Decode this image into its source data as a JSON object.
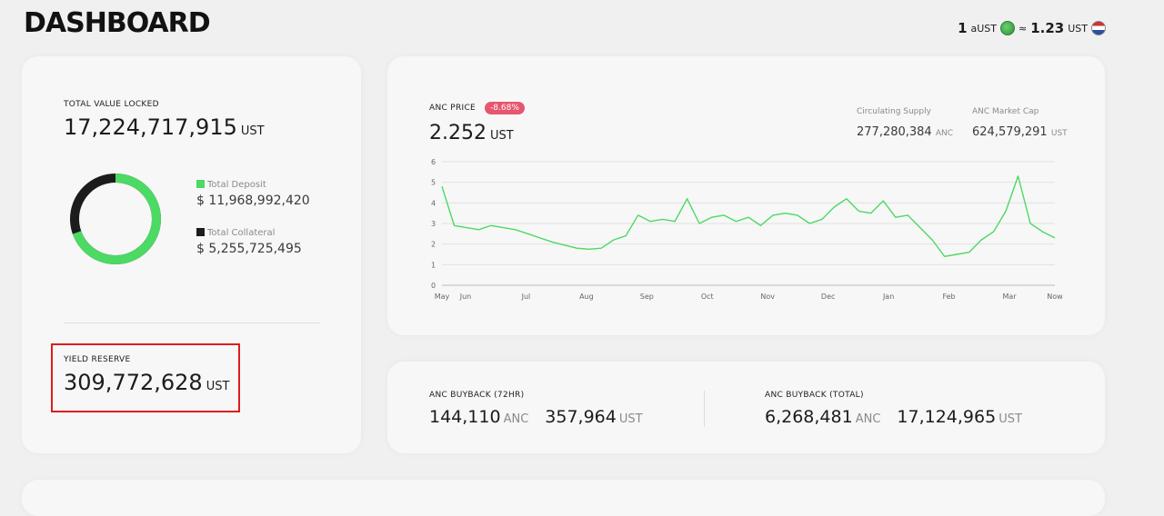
{
  "header": {
    "title": "DASHBOARD",
    "rate": {
      "lhs_qty": "1",
      "lhs_unit": "aUST",
      "approx": "≈",
      "rhs_qty": "1.23",
      "rhs_unit": "UST"
    }
  },
  "tvl": {
    "label": "TOTAL VALUE LOCKED",
    "value": "17,224,717,915",
    "unit": "UST",
    "legend": [
      {
        "label": "Total Deposit",
        "value": "$ 11,968,992,420",
        "color": "#4cd964"
      },
      {
        "label": "Total Collateral",
        "value": "$ 5,255,725,495",
        "color": "#1c1c1c"
      }
    ],
    "donut_fraction_deposit": 0.695
  },
  "yield_reserve": {
    "label": "YIELD RESERVE",
    "value": "309,772,628",
    "unit": "UST"
  },
  "anc_price": {
    "label": "ANC PRICE",
    "change_badge": "-8.68%",
    "value": "2.252",
    "unit": "UST",
    "circulating_supply": {
      "label": "Circulating Supply",
      "value": "277,280,384",
      "unit": "ANC"
    },
    "market_cap": {
      "label": "ANC Market Cap",
      "value": "624,579,291",
      "unit": "UST"
    }
  },
  "buyback": {
    "h72": {
      "label": "ANC BUYBACK (72HR)",
      "anc": "144,110",
      "anc_unit": "ANC",
      "ust": "357,964",
      "ust_unit": "UST"
    },
    "total": {
      "label": "ANC BUYBACK (TOTAL)",
      "anc": "6,268,481",
      "anc_unit": "ANC",
      "ust": "17,124,965",
      "ust_unit": "UST"
    }
  },
  "chart_data": {
    "type": "line",
    "title": "",
    "xlabel": "",
    "ylabel": "",
    "ylim": [
      0,
      6
    ],
    "yticks": [
      "0",
      "1",
      "2",
      "3",
      "4",
      "5",
      "6"
    ],
    "xticks": [
      "May",
      "Jun",
      "Jul",
      "Aug",
      "Sep",
      "Oct",
      "Nov",
      "Dec",
      "Jan",
      "Feb",
      "Mar",
      "Now"
    ],
    "grid": true,
    "line_color": "#4cd964",
    "x": [
      0,
      0.02,
      0.04,
      0.06,
      0.08,
      0.1,
      0.12,
      0.14,
      0.16,
      0.18,
      0.2,
      0.22,
      0.24,
      0.26,
      0.28,
      0.3,
      0.32,
      0.34,
      0.36,
      0.38,
      0.4,
      0.42,
      0.44,
      0.46,
      0.48,
      0.5,
      0.52,
      0.54,
      0.56,
      0.58,
      0.6,
      0.62,
      0.64,
      0.66,
      0.68,
      0.7,
      0.72,
      0.74,
      0.76,
      0.78,
      0.8,
      0.82,
      0.84,
      0.86,
      0.88,
      0.9,
      0.92,
      0.94,
      0.96,
      0.98,
      1.0
    ],
    "series": [
      {
        "values": [
          4.8,
          2.9,
          2.8,
          2.7,
          2.9,
          2.8,
          2.7,
          2.5,
          2.3,
          2.1,
          1.95,
          1.8,
          1.75,
          1.8,
          2.2,
          2.4,
          3.4,
          3.1,
          3.2,
          3.1,
          4.2,
          3.0,
          3.3,
          3.4,
          3.1,
          3.3,
          2.9,
          3.4,
          3.5,
          3.4,
          3.0,
          3.2,
          3.8,
          4.2,
          3.6,
          3.5,
          4.1,
          3.3,
          3.4,
          2.8,
          2.2,
          1.4,
          1.5,
          1.6,
          2.2,
          2.6,
          3.6,
          5.3,
          3.0,
          2.6,
          2.3
        ]
      }
    ]
  }
}
